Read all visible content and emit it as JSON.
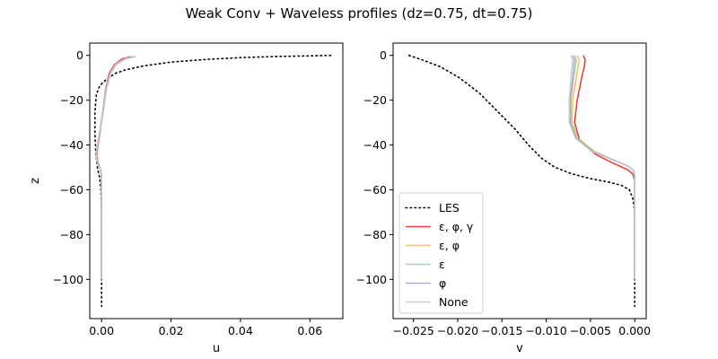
{
  "chart_data": {
    "title": "Weak Conv + Waveless profiles (dz=0.75, dt=0.75)",
    "series_styles": [
      {
        "name": "LES",
        "color": "#000000",
        "dash": "dotted",
        "opacity": 1.0
      },
      {
        "name": "ε, φ, γ",
        "color": "#e8443a",
        "dash": "solid",
        "opacity": 1.0
      },
      {
        "name": "ε, φ",
        "color": "#f7b84b",
        "dash": "solid",
        "opacity": 0.85
      },
      {
        "name": "ε",
        "color": "#9ccc9c",
        "dash": "solid",
        "opacity": 0.85
      },
      {
        "name": "φ",
        "color": "#a99ad6",
        "dash": "solid",
        "opacity": 0.85
      },
      {
        "name": "None",
        "color": "#c8c8c8",
        "dash": "solid",
        "opacity": 0.85
      }
    ],
    "legend": {
      "panel": 1,
      "placement": "lower-left"
    },
    "panels": [
      {
        "type": "line",
        "xlabel": "u",
        "ylabel": "z",
        "xlim": [
          -0.0034,
          0.0695
        ],
        "ylim": [
          -117.5,
          5.5
        ],
        "xticks": [
          0.0,
          0.02,
          0.04,
          0.06
        ],
        "xtick_labels": [
          "0.00",
          "0.02",
          "0.04",
          "0.06"
        ],
        "yticks": [
          0,
          -20,
          -40,
          -60,
          -80,
          -100
        ],
        "ytick_labels": [
          "0",
          "−20",
          "−40",
          "−60",
          "−80",
          "−100"
        ],
        "series": [
          {
            "name": "LES",
            "points": [
              [
                0.066,
                0
              ],
              [
                0.06,
                -0.2
              ],
              [
                0.05,
                -0.5
              ],
              [
                0.04,
                -1.0
              ],
              [
                0.03,
                -1.8
              ],
              [
                0.02,
                -3.0
              ],
              [
                0.012,
                -4.7
              ],
              [
                0.007,
                -6.4
              ],
              [
                0.004,
                -8.0
              ],
              [
                0.0015,
                -10.5
              ],
              [
                -0.0005,
                -13.5
              ],
              [
                -0.0015,
                -17.5
              ],
              [
                -0.0019,
                -25
              ],
              [
                -0.0019,
                -35
              ],
              [
                -0.0016,
                -45
              ],
              [
                -0.0012,
                -50
              ],
              [
                -0.0005,
                -55
              ],
              [
                -0.0002,
                -60
              ],
              [
                0.0,
                -70
              ],
              [
                0.0,
                -90
              ],
              [
                0.0,
                -112
              ]
            ]
          },
          {
            "name": "ε, φ, γ",
            "points": [
              [
                0.0085,
                -0.5
              ],
              [
                0.006,
                -1.5
              ],
              [
                0.0038,
                -4
              ],
              [
                0.0022,
                -8
              ],
              [
                0.0012,
                -15
              ],
              [
                0.0004,
                -25
              ],
              [
                -0.0005,
                -35
              ],
              [
                -0.0012,
                -42
              ],
              [
                -0.0014,
                -45
              ],
              [
                -0.001,
                -48
              ],
              [
                -0.0003,
                -51
              ],
              [
                0.0,
                -54
              ],
              [
                0.0,
                -70
              ],
              [
                0.0,
                -100
              ]
            ]
          },
          {
            "name": "ε, φ",
            "points": [
              [
                0.0092,
                -0.5
              ],
              [
                0.0065,
                -1.5
              ],
              [
                0.004,
                -4
              ],
              [
                0.0024,
                -8
              ],
              [
                0.0013,
                -15
              ],
              [
                0.0004,
                -25
              ],
              [
                -0.0006,
                -35
              ],
              [
                -0.0013,
                -42
              ],
              [
                -0.0015,
                -45
              ],
              [
                -0.0011,
                -48
              ],
              [
                -0.0003,
                -51
              ],
              [
                0.0,
                -54
              ],
              [
                0.0,
                -70
              ],
              [
                0.0,
                -100
              ]
            ]
          },
          {
            "name": "ε",
            "points": [
              [
                0.0097,
                -0.5
              ],
              [
                0.0068,
                -1.5
              ],
              [
                0.0042,
                -4
              ],
              [
                0.0025,
                -8
              ],
              [
                0.0014,
                -15
              ],
              [
                0.0005,
                -25
              ],
              [
                -0.0006,
                -35
              ],
              [
                -0.0014,
                -42
              ],
              [
                -0.0016,
                -45
              ],
              [
                -0.0012,
                -48
              ],
              [
                -0.0003,
                -51
              ],
              [
                0.0,
                -54
              ],
              [
                0.0,
                -70
              ],
              [
                0.0,
                -100
              ]
            ]
          },
          {
            "name": "φ",
            "points": [
              [
                0.0095,
                -0.5
              ],
              [
                0.0066,
                -1.5
              ],
              [
                0.0041,
                -4
              ],
              [
                0.0024,
                -8
              ],
              [
                0.0013,
                -15
              ],
              [
                0.0004,
                -25
              ],
              [
                -0.0006,
                -35
              ],
              [
                -0.0013,
                -42
              ],
              [
                -0.0015,
                -45
              ],
              [
                -0.0011,
                -48
              ],
              [
                -0.0003,
                -51
              ],
              [
                0.0,
                -54
              ],
              [
                0.0,
                -70
              ],
              [
                0.0,
                -100
              ]
            ]
          },
          {
            "name": "None",
            "points": [
              [
                0.01,
                -0.5
              ],
              [
                0.007,
                -1.5
              ],
              [
                0.0043,
                -4
              ],
              [
                0.0026,
                -8
              ],
              [
                0.0014,
                -15
              ],
              [
                0.0005,
                -25
              ],
              [
                -0.0006,
                -35
              ],
              [
                -0.0014,
                -42
              ],
              [
                -0.0016,
                -45
              ],
              [
                -0.0012,
                -48
              ],
              [
                -0.0003,
                -51
              ],
              [
                0.0,
                -54
              ],
              [
                0.0,
                -70
              ],
              [
                0.0,
                -100
              ]
            ]
          }
        ]
      },
      {
        "type": "line",
        "xlabel": "v",
        "ylabel": "",
        "xlim": [
          -0.0273,
          0.0013
        ],
        "ylim": [
          -117.5,
          5.5
        ],
        "xticks": [
          -0.025,
          -0.02,
          -0.015,
          -0.01,
          -0.005,
          0.0
        ],
        "xtick_labels": [
          "−0.025",
          "−0.020",
          "−0.015",
          "−0.010",
          "−0.005",
          "0.000"
        ],
        "yticks": [
          0,
          -20,
          -40,
          -60,
          -80,
          -100
        ],
        "ytick_labels": [
          "0",
          "−20",
          "−40",
          "−60",
          "−80",
          "−100"
        ],
        "series": [
          {
            "name": "LES",
            "points": [
              [
                -0.0255,
                0
              ],
              [
                -0.024,
                -2
              ],
              [
                -0.022,
                -5
              ],
              [
                -0.0198,
                -10
              ],
              [
                -0.0175,
                -17
              ],
              [
                -0.0155,
                -25
              ],
              [
                -0.0135,
                -33
              ],
              [
                -0.012,
                -40
              ],
              [
                -0.0105,
                -46
              ],
              [
                -0.009,
                -50
              ],
              [
                -0.007,
                -53
              ],
              [
                -0.005,
                -55
              ],
              [
                -0.003,
                -56.5
              ],
              [
                -0.0015,
                -58
              ],
              [
                -0.0006,
                -60
              ],
              [
                -0.0002,
                -64
              ],
              [
                0.0,
                -70
              ],
              [
                0.0,
                -90
              ],
              [
                0.0,
                -112
              ]
            ]
          },
          {
            "name": "ε, φ, γ",
            "points": [
              [
                -0.0058,
                0
              ],
              [
                -0.0056,
                -2
              ],
              [
                -0.0057,
                -5
              ],
              [
                -0.006,
                -10
              ],
              [
                -0.0065,
                -20
              ],
              [
                -0.0068,
                -30
              ],
              [
                -0.0062,
                -38
              ],
              [
                -0.0045,
                -44
              ],
              [
                -0.0025,
                -48
              ],
              [
                -0.0008,
                -51
              ],
              [
                -0.0002,
                -53
              ],
              [
                0.0,
                -56
              ],
              [
                0.0,
                -70
              ],
              [
                0.0,
                -100
              ]
            ]
          },
          {
            "name": "ε, φ",
            "points": [
              [
                -0.0065,
                0
              ],
              [
                -0.0063,
                -2
              ],
              [
                -0.0064,
                -5
              ],
              [
                -0.0066,
                -10
              ],
              [
                -0.007,
                -20
              ],
              [
                -0.0071,
                -30
              ],
              [
                -0.0064,
                -37
              ],
              [
                -0.0045,
                -43
              ],
              [
                -0.0022,
                -47
              ],
              [
                -0.0007,
                -49.5
              ],
              [
                -0.0001,
                -51.5
              ],
              [
                0.0,
                -54
              ],
              [
                0.0,
                -70
              ],
              [
                0.0,
                -100
              ]
            ]
          },
          {
            "name": "ε",
            "points": [
              [
                -0.0068,
                0
              ],
              [
                -0.0066,
                -2
              ],
              [
                -0.0067,
                -5
              ],
              [
                -0.0069,
                -10
              ],
              [
                -0.0072,
                -20
              ],
              [
                -0.0072,
                -30
              ],
              [
                -0.0065,
                -37
              ],
              [
                -0.0046,
                -43
              ],
              [
                -0.0022,
                -47
              ],
              [
                -0.0007,
                -49.5
              ],
              [
                -0.0001,
                -51.5
              ],
              [
                0.0,
                -54
              ],
              [
                0.0,
                -70
              ],
              [
                0.0,
                -100
              ]
            ]
          },
          {
            "name": "φ",
            "points": [
              [
                -0.007,
                0
              ],
              [
                -0.0068,
                -2
              ],
              [
                -0.0069,
                -5
              ],
              [
                -0.007,
                -10
              ],
              [
                -0.0073,
                -20
              ],
              [
                -0.0073,
                -30
              ],
              [
                -0.0066,
                -37
              ],
              [
                -0.0047,
                -43
              ],
              [
                -0.0022,
                -47
              ],
              [
                -0.0007,
                -49.5
              ],
              [
                -0.0001,
                -51.5
              ],
              [
                0.0,
                -54
              ],
              [
                0.0,
                -70
              ],
              [
                0.0,
                -100
              ]
            ]
          },
          {
            "name": "None",
            "points": [
              [
                -0.0072,
                0
              ],
              [
                -0.007,
                -2
              ],
              [
                -0.0071,
                -5
              ],
              [
                -0.0072,
                -10
              ],
              [
                -0.0074,
                -20
              ],
              [
                -0.0074,
                -30
              ],
              [
                -0.0067,
                -37
              ],
              [
                -0.0048,
                -43
              ],
              [
                -0.0022,
                -47
              ],
              [
                -0.0007,
                -49.5
              ],
              [
                -0.0001,
                -51.5
              ],
              [
                0.0,
                -54
              ],
              [
                0.0,
                -70
              ],
              [
                0.0,
                -100
              ]
            ]
          }
        ]
      }
    ]
  }
}
